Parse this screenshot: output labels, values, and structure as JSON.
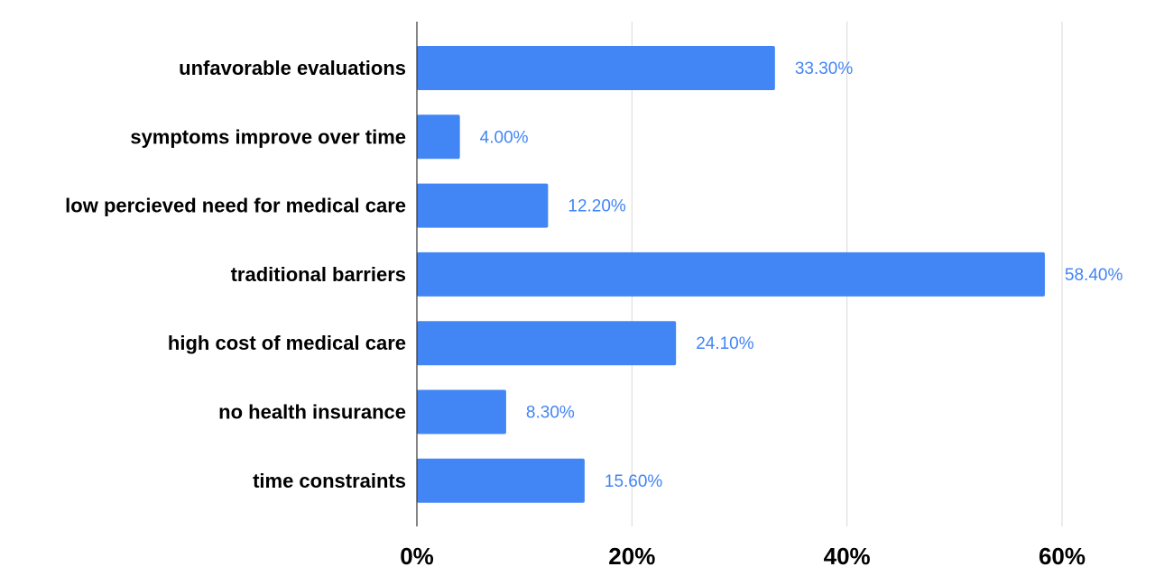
{
  "chart_data": {
    "type": "bar",
    "orientation": "horizontal",
    "categories": [
      "unfavorable evaluations",
      "symptoms improve over time",
      "low percieved need for medical care",
      "traditional barriers",
      "high cost of medical care",
      "no health insurance",
      "time constraints"
    ],
    "values": [
      33.3,
      4.0,
      12.2,
      58.4,
      24.1,
      8.3,
      15.6
    ],
    "value_labels": [
      "33.30%",
      "4.00%",
      "12.20%",
      "58.40%",
      "24.10%",
      "8.30%",
      "15.60%"
    ],
    "x_ticks": [
      0,
      20,
      40,
      60
    ],
    "x_tick_labels": [
      "0%",
      "20%",
      "40%",
      "60%"
    ],
    "xlim": [
      0,
      60
    ],
    "grid": "vertical",
    "legend": "none",
    "title": "",
    "xlabel": "",
    "ylabel": "",
    "colors": {
      "bar": "#4285f4",
      "value_label": "#4285f4",
      "grid": "#d9d9d9",
      "axis": "#333333"
    }
  }
}
